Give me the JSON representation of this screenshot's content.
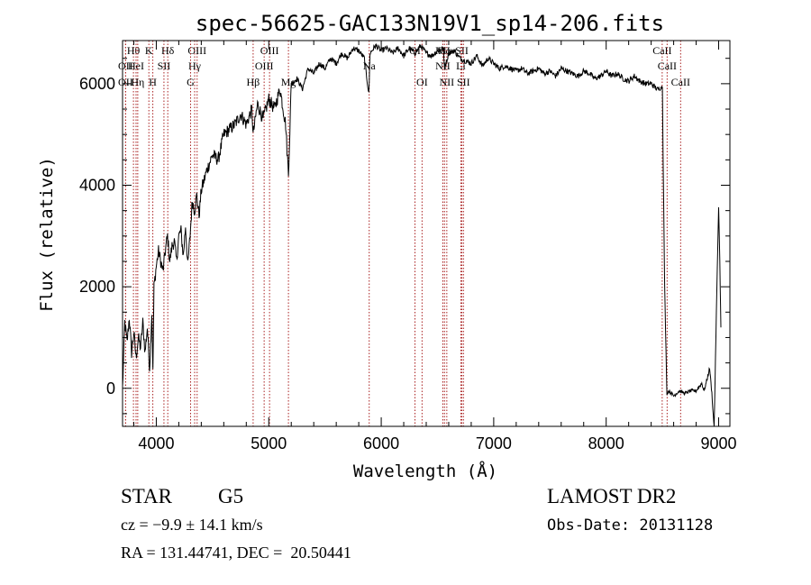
{
  "chart_data": {
    "type": "line",
    "title": "spec-56625-GAC133N19V1_sp14-206.fits",
    "xlabel": "Wavelength (Å)",
    "ylabel": "Flux (relative)",
    "xlim": [
      3700,
      9100
    ],
    "ylim": [
      -750,
      6850
    ],
    "xticks": [
      4000,
      5000,
      6000,
      7000,
      8000,
      9000
    ],
    "yticks": [
      0,
      2000,
      4000,
      6000
    ],
    "grid": false,
    "line_color": "#000000",
    "marker_color": "#aa2222",
    "spectrum": {
      "x": [
        3700,
        3720,
        3740,
        3760,
        3780,
        3800,
        3820,
        3840,
        3860,
        3880,
        3900,
        3920,
        3940,
        3960,
        3970,
        3980,
        4000,
        4020,
        4040,
        4060,
        4080,
        4100,
        4120,
        4140,
        4160,
        4180,
        4200,
        4220,
        4240,
        4260,
        4280,
        4300,
        4320,
        4340,
        4360,
        4380,
        4400,
        4450,
        4500,
        4550,
        4600,
        4650,
        4700,
        4750,
        4800,
        4850,
        4861,
        4900,
        4950,
        5000,
        5050,
        5100,
        5150,
        5175,
        5200,
        5250,
        5300,
        5350,
        5400,
        5450,
        5500,
        5550,
        5600,
        5650,
        5700,
        5750,
        5800,
        5850,
        5890,
        5900,
        5950,
        6000,
        6050,
        6100,
        6150,
        6200,
        6250,
        6300,
        6350,
        6400,
        6450,
        6500,
        6550,
        6563,
        6600,
        6650,
        6700,
        6750,
        6800,
        6850,
        6900,
        6950,
        7000,
        7050,
        7100,
        7150,
        7200,
        7250,
        7300,
        7350,
        7400,
        7450,
        7500,
        7550,
        7600,
        7650,
        7700,
        7750,
        7800,
        7850,
        7900,
        7950,
        8000,
        8050,
        8100,
        8150,
        8200,
        8250,
        8300,
        8350,
        8400,
        8450,
        8480,
        8500,
        8510,
        8520,
        8540,
        8560,
        8600,
        8650,
        8700,
        8750,
        8800,
        8850,
        8870,
        8900,
        8920,
        8940,
        8960,
        8980,
        9000,
        9010,
        9020
      ],
      "y": [
        0,
        1300,
        900,
        1400,
        700,
        1100,
        600,
        1000,
        800,
        1300,
        700,
        1200,
        400,
        1500,
        300,
        2000,
        2400,
        2700,
        2500,
        2300,
        2700,
        3000,
        2500,
        2800,
        2900,
        2500,
        3000,
        3100,
        2600,
        3200,
        2400,
        3000,
        3700,
        3500,
        3800,
        3400,
        3900,
        4300,
        4600,
        4500,
        5000,
        5100,
        5200,
        5400,
        5200,
        5500,
        5000,
        5600,
        5300,
        5700,
        5500,
        5900,
        5200,
        4200,
        6000,
        6100,
        5900,
        6300,
        6200,
        6400,
        6300,
        6500,
        6400,
        6600,
        6500,
        6700,
        6650,
        6500,
        5800,
        6600,
        6750,
        6650,
        6700,
        6600,
        6700,
        6550,
        6700,
        6600,
        6750,
        6600,
        6550,
        6650,
        6700,
        6300,
        6600,
        6650,
        6500,
        6450,
        6400,
        6550,
        6350,
        6500,
        6400,
        6300,
        6350,
        6300,
        6250,
        6300,
        6200,
        6250,
        6300,
        6200,
        6250,
        6150,
        6300,
        6250,
        6200,
        6150,
        6250,
        6200,
        6100,
        6150,
        6250,
        6150,
        6200,
        6100,
        6050,
        6150,
        6050,
        6000,
        6000,
        5900,
        5900,
        5950,
        3800,
        2000,
        -100,
        -50,
        -150,
        -50,
        -100,
        -50,
        -50,
        100,
        -50,
        200,
        400,
        -100,
        -800,
        1500,
        3600,
        2500,
        1200
      ]
    },
    "line_markers": [
      {
        "label": "Hθ",
        "x": 3797,
        "row": 1
      },
      {
        "label": "OII",
        "x": 3727,
        "row": 2
      },
      {
        "label": "OII",
        "x": 3727,
        "row": 3
      },
      {
        "label": "HeI",
        "x": 3820,
        "row": 2
      },
      {
        "label": "K",
        "x": 3934,
        "row": 1
      },
      {
        "label": "Hη",
        "x": 3835,
        "row": 3
      },
      {
        "label": "H",
        "x": 3969,
        "row": 3
      },
      {
        "label": "Hδ",
        "x": 4102,
        "row": 1
      },
      {
        "label": "SII",
        "x": 4068,
        "row": 2
      },
      {
        "label": "OIII",
        "x": 4363,
        "row": 1
      },
      {
        "label": "Hγ",
        "x": 4341,
        "row": 2
      },
      {
        "label": "G",
        "x": 4305,
        "row": 3
      },
      {
        "label": "OIII",
        "x": 5007,
        "row": 1
      },
      {
        "label": "OIII",
        "x": 4959,
        "row": 2
      },
      {
        "label": "Hβ",
        "x": 4861,
        "row": 3
      },
      {
        "label": "Mg",
        "x": 5175,
        "row": 3
      },
      {
        "label": "Na",
        "x": 5893,
        "row": 2
      },
      {
        "label": "OI",
        "x": 6300,
        "row": 1
      },
      {
        "label": "OI",
        "x": 6363,
        "row": 3
      },
      {
        "label": "NII",
        "x": 6548,
        "row": 1
      },
      {
        "label": "Hα",
        "x": 6563,
        "row": 1
      },
      {
        "label": "SII",
        "x": 6717,
        "row": 1
      },
      {
        "label": "NII",
        "x": 6548,
        "row": 2
      },
      {
        "label": "Li",
        "x": 6708,
        "row": 2
      },
      {
        "label": "NII",
        "x": 6583,
        "row": 3
      },
      {
        "label": "SII",
        "x": 6731,
        "row": 3
      },
      {
        "label": "CaII",
        "x": 8498,
        "row": 1
      },
      {
        "label": "CaII",
        "x": 8542,
        "row": 2
      },
      {
        "label": "CaII",
        "x": 8662,
        "row": 3
      }
    ]
  },
  "info": {
    "object_class": "STAR",
    "subclass": "G5",
    "survey": "LAMOST DR2",
    "cz": "cz = −9.9 ± 14.1 km/s",
    "obs_date": "Obs-Date: 20131128",
    "coords": "RA = 131.44741, DEC =  20.50441"
  }
}
